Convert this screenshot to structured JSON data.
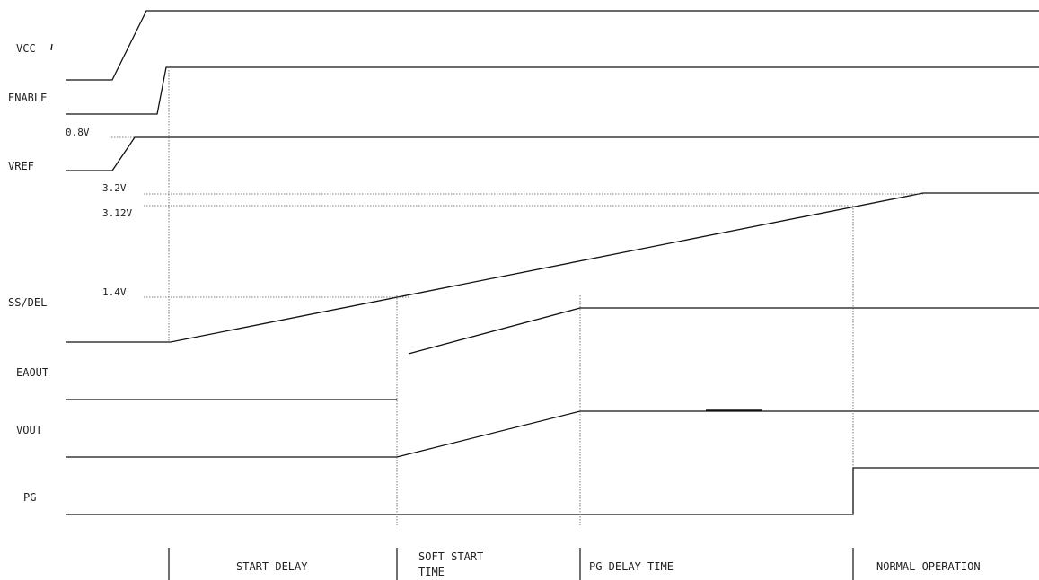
{
  "signals": {
    "vcc": "VCC",
    "enable": "ENABLE",
    "vref": "VREF",
    "ss_del": "SS/DEL",
    "eaout": "EAOUT",
    "vout": "VOUT",
    "pg": "PG"
  },
  "levels": {
    "v0_8": "0.8V",
    "v3_2": "3.2V",
    "v3_12": "3.12V",
    "v1_4": "1.4V"
  },
  "phases": {
    "start_delay": "START DELAY",
    "soft_start_line1": "SOFT START",
    "soft_start_line2": "TIME",
    "pg_delay": "PG DELAY TIME",
    "normal_operation": "NORMAL OPERATION"
  }
}
